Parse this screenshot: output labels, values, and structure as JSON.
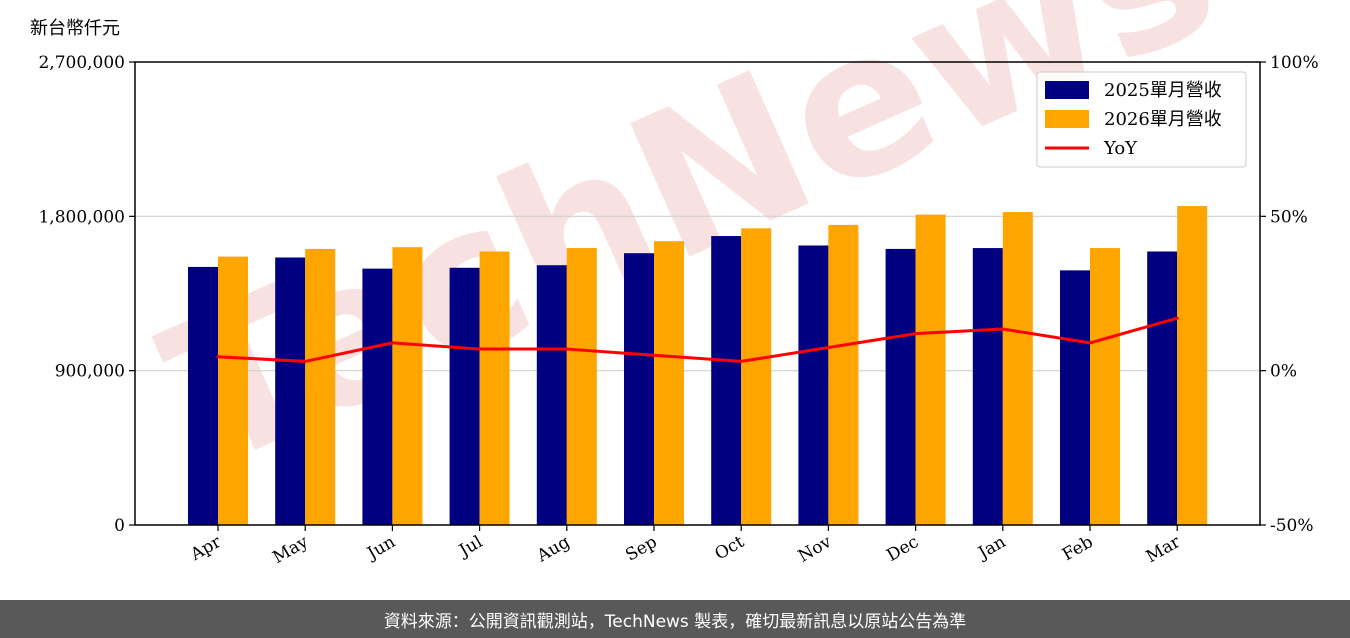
{
  "colors": {
    "series_2025": "#000080",
    "series_2026": "#FFA500",
    "yoy_line": "#FF0000",
    "watermark": "#f3c8c8",
    "footer_bg": "#595959"
  },
  "watermark_text": "TechNews",
  "footer": {
    "text": "資料來源：公開資訊觀測站，TechNews 製表，確切最新訊息以原站公告為準"
  },
  "chart_data": {
    "type": "bar",
    "ylabel": "新台幣仟元",
    "categories": [
      "Apr",
      "May",
      "Jun",
      "Jul",
      "Aug",
      "Sep",
      "Oct",
      "Nov",
      "Dec",
      "Jan",
      "Feb",
      "Mar"
    ],
    "series": [
      {
        "name": "2025單月營收",
        "values": [
          1505000,
          1560000,
          1495000,
          1500000,
          1515000,
          1585000,
          1685000,
          1630000,
          1610000,
          1615000,
          1485000,
          1595000
        ]
      },
      {
        "name": "2026單月營收",
        "values": [
          1565000,
          1610000,
          1620000,
          1595000,
          1615000,
          1655000,
          1730000,
          1750000,
          1810000,
          1825000,
          1615000,
          1860000
        ]
      }
    ],
    "line_series": {
      "name": "YoY",
      "axis": "right",
      "values": [
        4.5,
        3.0,
        9.0,
        7.0,
        7.0,
        5.0,
        3.0,
        7.5,
        12.0,
        13.5,
        9.0,
        17.0
      ]
    },
    "ylim": [
      0,
      2700000
    ],
    "yticks": [
      0,
      900000,
      1800000,
      2700000
    ],
    "ytick_labels": [
      "0",
      "900,000",
      "1,800,000",
      "2,700,000"
    ],
    "y2lim": [
      -50,
      100
    ],
    "y2ticks": [
      -50,
      0,
      50,
      100
    ],
    "y2tick_labels": [
      "-50%",
      "0%",
      "50%",
      "100%"
    ],
    "grid": "horizontal",
    "legend": {
      "position": "top-right",
      "entries": [
        "2025單月營收",
        "2026單月營收",
        "YoY"
      ]
    }
  }
}
